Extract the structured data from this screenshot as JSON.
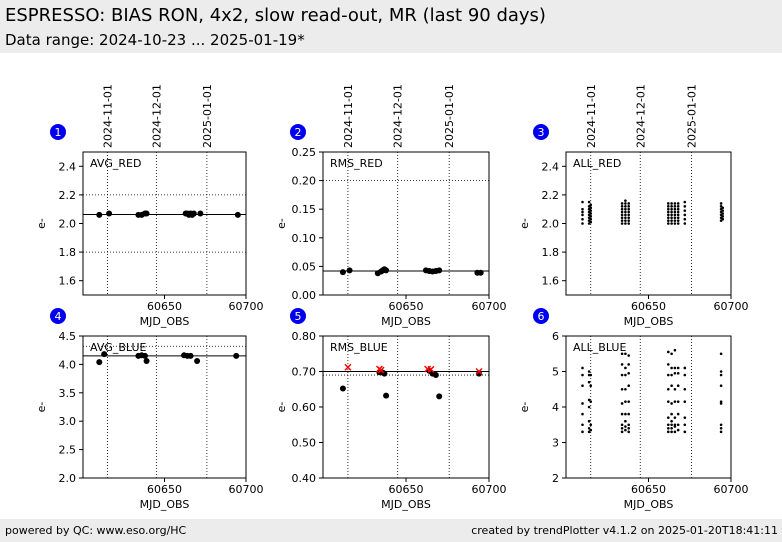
{
  "header": {
    "title": "ESPRESSO: BIAS RON, 4x2, slow read-out, MR (last 90 days)",
    "subtitle": "Data range: 2024-10-23 ... 2025-01-19*"
  },
  "footer": {
    "left": "powered by QC: www.eso.org/HC",
    "right": "created by trendPlotter v4.1.2 on 2025-01-20T18:41:11"
  },
  "date_ticks": [
    {
      "label": "2024-11-01",
      "mjd": 60615
    },
    {
      "label": "2024-12-01",
      "mjd": 60645
    },
    {
      "label": "2025-01-01",
      "mjd": 60676
    }
  ],
  "colors": {
    "points": "#000000",
    "badge": "#0000ee",
    "reference_points": "#ff0000"
  },
  "chart_data": [
    {
      "panel": "1",
      "type": "scatter",
      "label": "AVG_RED",
      "xlabel": "MJD_OBS",
      "ylabel": "e-",
      "xlim": [
        60600,
        60700
      ],
      "ylim": [
        1.5,
        2.5
      ],
      "xticks": [
        60650,
        60700
      ],
      "yticks": [
        1.6,
        1.8,
        2.0,
        2.2,
        2.4
      ],
      "hlines": [
        {
          "y": 2.2,
          "style": "dotted"
        },
        {
          "y": 2.063,
          "style": "solid"
        },
        {
          "y": 1.8,
          "style": "dotted"
        }
      ],
      "marker": "dot",
      "series": [
        {
          "x": [
            60610,
            60616,
            60634,
            60636,
            60638,
            60639,
            60663,
            60664,
            60665,
            60666,
            60667,
            60668,
            60672,
            60695
          ],
          "y": [
            2.06,
            2.07,
            2.06,
            2.06,
            2.07,
            2.07,
            2.07,
            2.07,
            2.06,
            2.07,
            2.06,
            2.07,
            2.07,
            2.06
          ]
        }
      ]
    },
    {
      "panel": "2",
      "type": "scatter",
      "label": "RMS_RED",
      "xlabel": "MJD_OBS",
      "ylabel": "e-",
      "xlim": [
        60600,
        60700
      ],
      "ylim": [
        0.0,
        0.25
      ],
      "xticks": [
        60650,
        60700
      ],
      "yticks": [
        0.0,
        0.05,
        0.1,
        0.15,
        0.2,
        0.25
      ],
      "hlines": [
        {
          "y": 0.2,
          "style": "dotted"
        },
        {
          "y": 0.042,
          "style": "solid"
        }
      ],
      "marker": "dot",
      "series": [
        {
          "x": [
            60612,
            60616,
            60633,
            60635,
            60636,
            60637,
            60638,
            60662,
            60664,
            60666,
            60668,
            60670,
            60693,
            60695
          ],
          "y": [
            0.04,
            0.043,
            0.038,
            0.041,
            0.043,
            0.045,
            0.043,
            0.043,
            0.042,
            0.041,
            0.042,
            0.043,
            0.039,
            0.039
          ]
        }
      ]
    },
    {
      "panel": "3",
      "type": "scatter",
      "label": "ALL_RED",
      "xlabel": "MJD_OBS",
      "ylabel": "e-",
      "xlim": [
        60600,
        60700
      ],
      "ylim": [
        1.5,
        2.5
      ],
      "xticks": [
        60650,
        60700
      ],
      "yticks": [
        1.6,
        1.8,
        2.0,
        2.2,
        2.4
      ],
      "marker": "small",
      "series": [
        {
          "columns": [
            {
              "x": 60610,
              "y": [
                2.0,
                2.03,
                2.06,
                2.08,
                2.1,
                2.15
              ]
            },
            {
              "x": 60614,
              "y": [
                2.0,
                2.02,
                2.04,
                2.06,
                2.08,
                2.1,
                2.12,
                2.15
              ]
            },
            {
              "x": 60615,
              "y": [
                2.01,
                2.03,
                2.05,
                2.07,
                2.09,
                2.11,
                2.13
              ]
            },
            {
              "x": 60634,
              "y": [
                2.0,
                2.02,
                2.04,
                2.06,
                2.08,
                2.1,
                2.12,
                2.14
              ]
            },
            {
              "x": 60636,
              "y": [
                2.0,
                2.02,
                2.04,
                2.06,
                2.08,
                2.1,
                2.12,
                2.14,
                2.16
              ]
            },
            {
              "x": 60638,
              "y": [
                2.0,
                2.02,
                2.04,
                2.06,
                2.08,
                2.1,
                2.12,
                2.14
              ]
            },
            {
              "x": 60662,
              "y": [
                2.0,
                2.02,
                2.04,
                2.06,
                2.08,
                2.1,
                2.12,
                2.14
              ]
            },
            {
              "x": 60664,
              "y": [
                2.0,
                2.02,
                2.04,
                2.06,
                2.08,
                2.1,
                2.12,
                2.14
              ]
            },
            {
              "x": 60666,
              "y": [
                2.0,
                2.02,
                2.04,
                2.06,
                2.08,
                2.1,
                2.12,
                2.14
              ]
            },
            {
              "x": 60668,
              "y": [
                2.0,
                2.02,
                2.04,
                2.06,
                2.08,
                2.1,
                2.12,
                2.14
              ]
            },
            {
              "x": 60672,
              "y": [
                2.0,
                2.03,
                2.06,
                2.09,
                2.12,
                2.15
              ]
            },
            {
              "x": 60694,
              "y": [
                2.02,
                2.04,
                2.06,
                2.08,
                2.1,
                2.12,
                2.14
              ]
            },
            {
              "x": 60695,
              "y": [
                2.03,
                2.05,
                2.07,
                2.09,
                2.11
              ]
            }
          ]
        }
      ]
    },
    {
      "panel": "4",
      "type": "scatter",
      "label": "AVG_BLUE",
      "xlabel": "MJD_OBS",
      "ylabel": "e-",
      "xlim": [
        60600,
        60700
      ],
      "ylim": [
        2.0,
        4.5
      ],
      "xticks": [
        60650,
        60700
      ],
      "yticks": [
        2.0,
        2.5,
        3.0,
        3.5,
        4.0,
        4.5
      ],
      "hlines": [
        {
          "y": 4.32,
          "style": "dotted"
        },
        {
          "y": 4.15,
          "style": "solid"
        }
      ],
      "marker": "dot",
      "series": [
        {
          "x": [
            60610,
            60613,
            60634,
            60636,
            60638,
            60639,
            60662,
            60664,
            60666,
            60670,
            60694
          ],
          "y": [
            4.04,
            4.18,
            4.15,
            4.16,
            4.15,
            4.06,
            4.16,
            4.15,
            4.15,
            4.06,
            4.15
          ]
        }
      ]
    },
    {
      "panel": "5",
      "type": "scatter",
      "label": "RMS_BLUE",
      "xlabel": "MJD_OBS",
      "ylabel": "e-",
      "xlim": [
        60600,
        60700
      ],
      "ylim": [
        0.4,
        0.8
      ],
      "xticks": [
        60650,
        60700
      ],
      "yticks": [
        0.4,
        0.5,
        0.6,
        0.7,
        0.8
      ],
      "hlines": [
        {
          "y": 0.7,
          "style": "solid"
        },
        {
          "y": 0.69,
          "style": "dotted"
        }
      ],
      "marker": "dot",
      "series": [
        {
          "x": [
            60612,
            60634,
            60636,
            60637,
            60638,
            60664,
            60666,
            60668,
            60670,
            60694
          ],
          "y": [
            0.652,
            0.698,
            0.697,
            0.694,
            0.632,
            0.702,
            0.694,
            0.69,
            0.63,
            0.694
          ]
        },
        {
          "marker": "x",
          "x": [
            60615,
            60634,
            60635,
            60663,
            60665,
            60694
          ],
          "y": [
            0.712,
            0.707,
            0.704,
            0.707,
            0.706,
            0.7
          ]
        }
      ]
    },
    {
      "panel": "6",
      "type": "scatter",
      "label": "ALL_BLUE",
      "xlabel": "MJD_OBS",
      "ylabel": "e-",
      "xlim": [
        60600,
        60700
      ],
      "ylim": [
        2,
        6
      ],
      "xticks": [
        60650,
        60700
      ],
      "yticks": [
        2,
        3,
        4,
        5,
        6
      ],
      "marker": "small",
      "series": [
        {
          "columns": [
            {
              "x": 60610,
              "y": [
                3.3,
                3.5,
                3.8,
                4.1,
                4.6,
                4.9,
                5.1
              ]
            },
            {
              "x": 60614,
              "y": [
                3.3,
                3.4,
                3.6,
                4.0,
                4.2,
                4.7,
                4.9,
                5.0
              ]
            },
            {
              "x": 60615,
              "y": [
                3.35,
                3.5,
                4.15,
                4.6,
                4.9
              ]
            },
            {
              "x": 60634,
              "y": [
                3.3,
                3.4,
                3.5,
                3.8,
                4.1,
                4.5,
                4.9,
                5.2,
                5.5
              ]
            },
            {
              "x": 60636,
              "y": [
                3.35,
                3.45,
                3.6,
                3.8,
                4.15,
                4.5,
                4.9,
                5.1,
                5.5
              ]
            },
            {
              "x": 60638,
              "y": [
                3.3,
                3.4,
                3.5,
                3.8,
                4.15,
                4.6,
                4.95,
                5.2,
                5.45
              ]
            },
            {
              "x": 60662,
              "y": [
                3.3,
                3.4,
                3.5,
                3.7,
                4.15,
                4.5,
                4.9,
                5.2,
                5.55
              ]
            },
            {
              "x": 60664,
              "y": [
                3.3,
                3.4,
                3.5,
                3.6,
                3.8,
                4.1,
                4.6,
                4.9,
                5.1,
                5.5
              ]
            },
            {
              "x": 60666,
              "y": [
                3.3,
                3.45,
                3.5,
                3.7,
                4.15,
                4.5,
                4.95,
                5.1,
                5.6
              ]
            },
            {
              "x": 60668,
              "y": [
                3.35,
                3.5,
                3.8,
                4.15,
                4.6,
                4.95,
                5.1
              ]
            },
            {
              "x": 60672,
              "y": [
                3.3,
                3.5,
                3.7,
                4.15,
                4.5,
                4.9,
                5.1
              ]
            },
            {
              "x": 60694,
              "y": [
                3.3,
                3.4,
                3.5,
                4.1,
                4.15,
                4.6,
                4.9,
                5.0,
                5.5
              ]
            }
          ]
        }
      ]
    }
  ]
}
